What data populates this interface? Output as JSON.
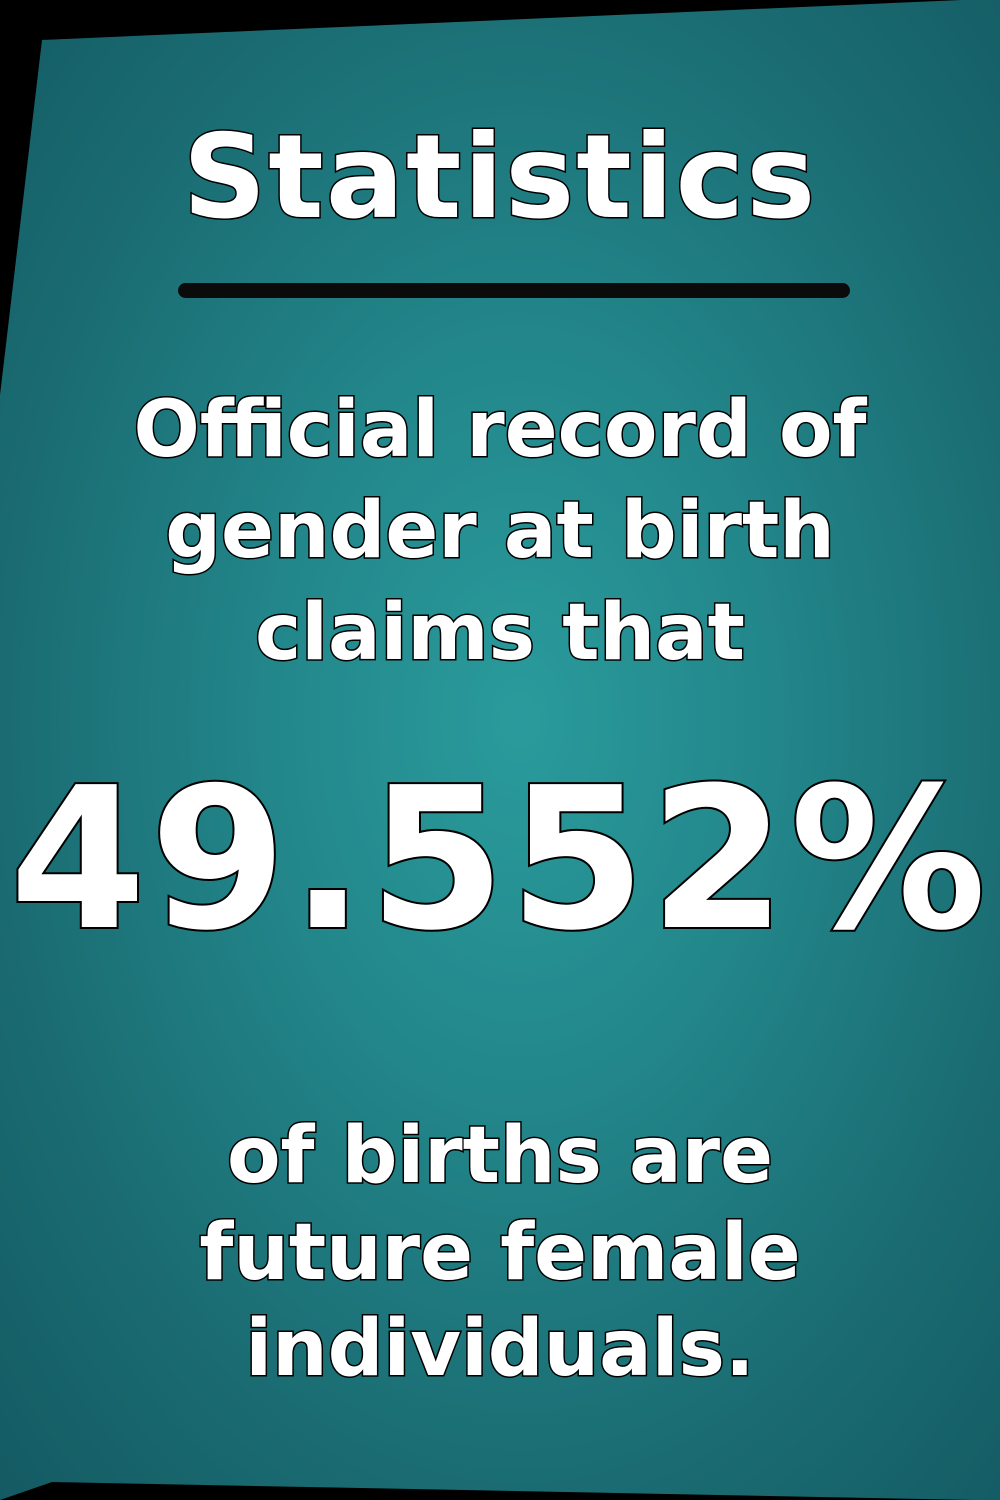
{
  "title": "Statistics",
  "intro_lines": [
    "Official record of",
    "gender at birth",
    "claims that"
  ],
  "statistic": "49.552%",
  "outro_lines": [
    "of births are",
    "future female",
    "individuals."
  ],
  "colors": {
    "background": "#000000",
    "panel_center": "#2a9b9c",
    "panel_edge": "#145a63",
    "text": "#ffffff",
    "outline": "#000000"
  }
}
